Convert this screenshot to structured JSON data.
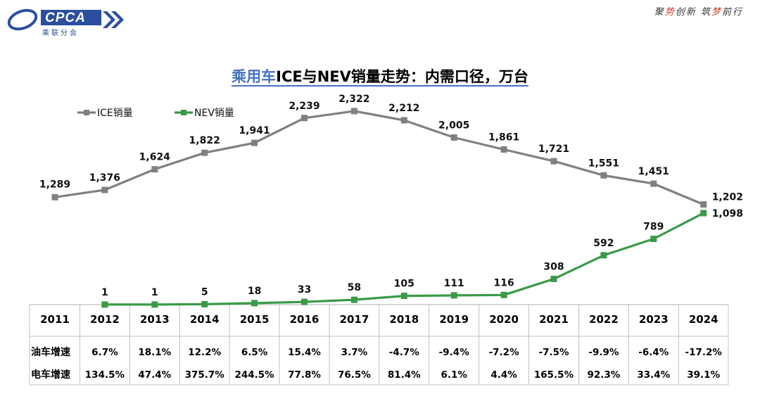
{
  "header": {
    "logo_text": "CPCA",
    "logo_sub": "乘联分会",
    "slogan_parts": [
      "聚",
      "势",
      "创新 筑",
      "梦",
      "前行"
    ]
  },
  "chart_data": {
    "type": "line",
    "title_highlight": "乘用车",
    "title_rest": "ICE与NEV销量走势：内需口径，万台",
    "categories": [
      "2011",
      "2012",
      "2013",
      "2014",
      "2015",
      "2016",
      "2017",
      "2018",
      "2019",
      "2020",
      "2021",
      "2022",
      "2023",
      "2024"
    ],
    "series": [
      {
        "name": "ICE销量",
        "color": "#808080",
        "values": [
          1289,
          1376,
          1624,
          1822,
          1941,
          2239,
          2322,
          2212,
          2005,
          1861,
          1721,
          1551,
          1451,
          1202
        ],
        "labels": [
          "1,289",
          "1,376",
          "1,624",
          "1,822",
          "1,941",
          "2,239",
          "2,322",
          "2,212",
          "2,005",
          "1,861",
          "1,721",
          "1,551",
          "1,451",
          "1,202"
        ]
      },
      {
        "name": "NEV销量",
        "color": "#3a9a47",
        "values": [
          null,
          1,
          1,
          5,
          18,
          33,
          58,
          105,
          111,
          116,
          308,
          592,
          789,
          1098
        ],
        "labels": [
          "",
          "1",
          "1",
          "5",
          "18",
          "33",
          "58",
          "105",
          "111",
          "116",
          "308",
          "592",
          "789",
          "1,098"
        ]
      }
    ],
    "ylim": [
      0,
      2600
    ],
    "legend": "top-left",
    "table": {
      "rows": [
        {
          "label": "油车增速",
          "values": [
            "6.7%",
            "18.1%",
            "12.2%",
            "6.5%",
            "15.4%",
            "3.7%",
            "-4.7%",
            "-9.4%",
            "-7.2%",
            "-7.5%",
            "-9.9%",
            "-6.4%",
            "-17.2%"
          ]
        },
        {
          "label": "电车增速",
          "values": [
            "134.5%",
            "47.4%",
            "375.7%",
            "244.5%",
            "77.8%",
            "76.5%",
            "81.4%",
            "6.1%",
            "4.4%",
            "165.5%",
            "92.3%",
            "33.4%",
            "39.1%"
          ]
        }
      ]
    }
  }
}
